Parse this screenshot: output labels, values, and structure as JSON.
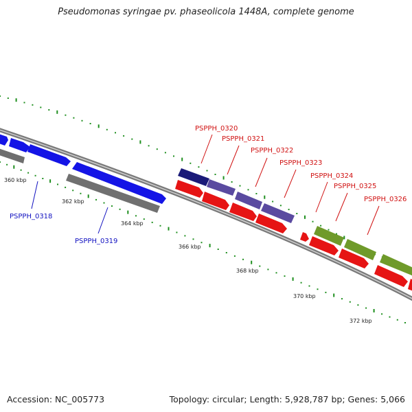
{
  "title": "Pseudomonas syringae pv. phaseolicola 1448A, complete genome",
  "footer": {
    "accession": "Accession: NC_005773",
    "topology": "Topology: circular; Length: 5,928,787 bp; Genes: 5,066"
  },
  "colors": {
    "backbone": "#8c8c8c",
    "gc_ticks": "#1f8f1f",
    "forward_blue": "#1414e6",
    "reverse_gray": "#6e6e6e",
    "forward_navy": "#1a1a78",
    "forward_slate": "#5a4aa0",
    "reverse_red": "#e61414",
    "forward_olive": "#6f9a2a",
    "label_blue": "#1010c0",
    "label_red": "#d01010"
  },
  "tick_labels": [
    "360 kbp",
    "362 kbp",
    "364 kbp",
    "366 kbp",
    "368 kbp",
    "370 kbp",
    "372 kbp"
  ],
  "genes": [
    {
      "id": "g-a",
      "track": "cds-forward",
      "color": "forward_blue"
    },
    {
      "id": "g-b",
      "track": "cds-forward",
      "color": "forward_blue"
    },
    {
      "id": "g-c",
      "track": "cds-forward",
      "color": "forward_blue",
      "label": "PSPPH_0318"
    },
    {
      "id": "g-d",
      "track": "cds-forward",
      "color": "forward_blue",
      "label": "PSPPH_0319"
    },
    {
      "id": "g-e",
      "track": "cds-forward",
      "color": "forward_navy",
      "label": "PSPPH_0320"
    },
    {
      "id": "g-f",
      "track": "cds-forward",
      "color": "forward_slate",
      "label": "PSPPH_0321"
    },
    {
      "id": "g-g",
      "track": "cds-forward",
      "color": "forward_slate",
      "label": "PSPPH_0322"
    },
    {
      "id": "g-h",
      "track": "cds-forward",
      "color": "forward_slate",
      "label": "PSPPH_0323"
    },
    {
      "id": "g-i",
      "track": "cds-forward",
      "color": "forward_olive",
      "label": "PSPPH_0324"
    },
    {
      "id": "g-j",
      "track": "cds-forward",
      "color": "forward_olive",
      "label": "PSPPH_0325"
    },
    {
      "id": "g-k",
      "track": "cds-forward",
      "color": "forward_olive",
      "label": "PSPPH_0326"
    }
  ]
}
